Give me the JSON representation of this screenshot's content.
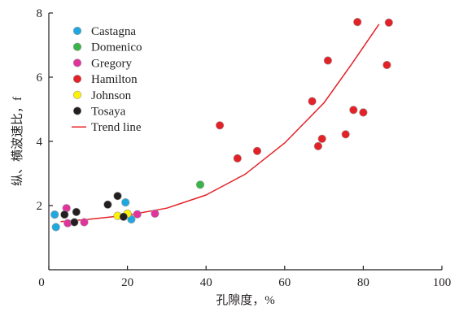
{
  "chart_data": {
    "type": "scatter",
    "title": "",
    "xlabel": "孔隙度，%",
    "ylabel": "纵、横波速比，f",
    "xlim": [
      0,
      100
    ],
    "ylim": [
      0,
      8
    ],
    "x_ticks": [
      0,
      20,
      40,
      60,
      80,
      100
    ],
    "y_ticks": [
      2,
      4,
      6,
      8
    ],
    "x_tick_labels": [
      "0",
      "20",
      "40",
      "60",
      "80",
      "100"
    ],
    "y_tick_labels": [
      "2",
      "4",
      "6",
      "8"
    ],
    "grid": false,
    "legend_position": "top-left",
    "series": [
      {
        "name": "Castagna",
        "color": "#1fa8e0",
        "points": [
          [
            1.5,
            1.72
          ],
          [
            1.8,
            1.33
          ],
          [
            19.5,
            2.1
          ],
          [
            21.0,
            1.57
          ]
        ]
      },
      {
        "name": "Domenico",
        "color": "#3ab449",
        "points": [
          [
            38.5,
            2.65
          ]
        ]
      },
      {
        "name": "Gregory",
        "color": "#e0339c",
        "points": [
          [
            4.5,
            1.92
          ],
          [
            4.8,
            1.45
          ],
          [
            9.0,
            1.48
          ],
          [
            22.5,
            1.73
          ],
          [
            27.0,
            1.75
          ]
        ]
      },
      {
        "name": "Hamilton",
        "color": "#e42127",
        "points": [
          [
            43.5,
            4.5
          ],
          [
            48.0,
            3.47
          ],
          [
            53.0,
            3.7
          ],
          [
            67.0,
            5.25
          ],
          [
            68.5,
            3.85
          ],
          [
            69.5,
            4.08
          ],
          [
            71.0,
            6.52
          ],
          [
            75.5,
            4.22
          ],
          [
            77.5,
            4.98
          ],
          [
            78.5,
            7.72
          ],
          [
            80.0,
            4.9
          ],
          [
            86.0,
            6.38
          ],
          [
            86.5,
            7.7
          ]
        ]
      },
      {
        "name": "Johnson",
        "color": "#fff200",
        "points": [
          [
            17.5,
            1.68
          ],
          [
            20.0,
            1.75
          ]
        ]
      },
      {
        "name": "Tosaya",
        "color": "#231f20",
        "points": [
          [
            4.0,
            1.72
          ],
          [
            6.5,
            1.48
          ],
          [
            7.0,
            1.8
          ],
          [
            15.0,
            2.03
          ],
          [
            17.5,
            2.3
          ],
          [
            19.0,
            1.65
          ]
        ]
      }
    ],
    "trend_line": {
      "name": "Trend line",
      "color": "#e42127",
      "points": [
        [
          3,
          1.5
        ],
        [
          10,
          1.57
        ],
        [
          20,
          1.7
        ],
        [
          30,
          1.92
        ],
        [
          40,
          2.33
        ],
        [
          50,
          2.98
        ],
        [
          60,
          3.95
        ],
        [
          70,
          5.2
        ],
        [
          77,
          6.4
        ],
        [
          84,
          7.65
        ]
      ]
    }
  }
}
